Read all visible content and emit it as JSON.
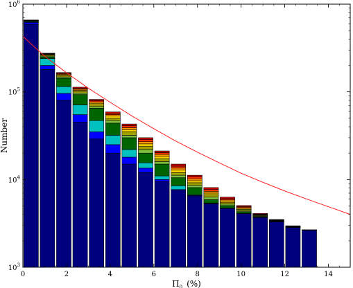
{
  "chart_data": {
    "type": "bar",
    "stacked": true,
    "y_scale": "log",
    "xlabel_main": "Π",
    "xlabel_sub": "0",
    "xlabel_unit": "(%)",
    "ylabel": "Number",
    "xlim": [
      0,
      15
    ],
    "ylim": [
      1000,
      1000000
    ],
    "grid": false,
    "legend": false,
    "x_ticks": [
      0,
      2,
      4,
      6,
      8,
      10,
      12,
      14
    ],
    "y_ticks": [
      {
        "value": 1000,
        "base": "10",
        "exp": "3"
      },
      {
        "value": 10000,
        "base": "10",
        "exp": "4"
      },
      {
        "value": 100000,
        "base": "10",
        "exp": "5"
      },
      {
        "value": 1000000,
        "base": "10",
        "exp": "6"
      }
    ],
    "bin_width": 0.75,
    "bins": [
      {
        "x": 0.375,
        "layers": [
          590000,
          620000,
          630000,
          640000,
          643000,
          646000,
          649000,
          652000,
          655000,
          660000
        ]
      },
      {
        "x": 1.125,
        "layers": [
          180000,
          200000,
          240000,
          250000,
          256000,
          262000,
          266000,
          270000,
          273000,
          276000
        ]
      },
      {
        "x": 1.875,
        "layers": [
          80000,
          96000,
          115000,
          143000,
          148000,
          153000,
          157000,
          160000,
          163000,
          166000
        ]
      },
      {
        "x": 2.625,
        "layers": [
          45000,
          55000,
          71000,
          93000,
          97000,
          101000,
          104000,
          107000,
          110000,
          113000
        ]
      },
      {
        "x": 3.375,
        "layers": [
          29000,
          35000,
          47000,
          65000,
          68000,
          71000,
          74000,
          77000,
          79000,
          82000
        ]
      },
      {
        "x": 4.125,
        "layers": [
          20000,
          25000,
          32000,
          44000,
          47000,
          50000,
          53000,
          55000,
          57000,
          59000
        ]
      },
      {
        "x": 4.875,
        "layers": [
          15000,
          18000,
          22000,
          30000,
          32000,
          35000,
          37000,
          39000,
          41000,
          43000
        ]
      },
      {
        "x": 5.625,
        "layers": [
          12000,
          13500,
          15500,
          20000,
          22000,
          24000,
          25500,
          27000,
          28500,
          30000
        ]
      },
      {
        "x": 6.375,
        "layers": [
          9500,
          10000,
          11000,
          15000,
          16000,
          17300,
          18400,
          19400,
          20300,
          21200
        ]
      },
      {
        "x": 7.125,
        "layers": [
          7500,
          7700,
          8500,
          10500,
          11200,
          12000,
          12800,
          13500,
          14200,
          15000
        ]
      },
      {
        "x": 7.875,
        "layers": [
          6500,
          6600,
          6700,
          8100,
          8600,
          9200,
          9700,
          10200,
          10700,
          11200
        ]
      },
      {
        "x": 8.625,
        "layers": [
          5300,
          5350,
          5400,
          5900,
          6300,
          6700,
          7000,
          7350,
          7700,
          8100
        ]
      },
      {
        "x": 9.375,
        "layers": [
          4700,
          4720,
          4740,
          5050,
          5250,
          5450,
          5650,
          5850,
          6050,
          6300
        ]
      },
      {
        "x": 10.125,
        "layers": [
          4100,
          4110,
          4120,
          4300,
          4420,
          4560,
          4680,
          4800,
          4920,
          5050
        ]
      },
      {
        "x": 10.875,
        "layers": [
          3700,
          3705,
          3710,
          3760,
          3820,
          3880,
          3930,
          3980,
          4030,
          4100
        ]
      },
      {
        "x": 11.625,
        "layers": [
          3300,
          3302,
          3304,
          3320,
          3350,
          3380,
          3410,
          3440,
          3470,
          3500
        ]
      },
      {
        "x": 12.375,
        "layers": [
          2850,
          2852,
          2854,
          2860,
          2875,
          2890,
          2905,
          2920,
          2940,
          2970
        ]
      },
      {
        "x": 13.125,
        "layers": [
          2650,
          2651,
          2652,
          2654,
          2656,
          2658,
          2660,
          2662,
          2664,
          2668
        ]
      }
    ],
    "layer_colors": [
      "#00007f",
      "#0000ff",
      "#00c0c0",
      "#006400",
      "#7fbf3f",
      "#a0a000",
      "#ffd700",
      "#ff9900",
      "#ff3300",
      "#cc0000"
    ],
    "bar_edge_color": "#000000",
    "curve": {
      "color": "#ff2020",
      "x": [
        0,
        0.5,
        1,
        1.5,
        2,
        3,
        4,
        5,
        6,
        7,
        8,
        9,
        10,
        11,
        12,
        13,
        14,
        15
      ],
      "y": [
        430000,
        330000,
        255000,
        205000,
        165000,
        110000,
        76000,
        53000,
        38000,
        27500,
        20500,
        15500,
        11800,
        9300,
        7400,
        6000,
        4900,
        4000
      ]
    }
  }
}
